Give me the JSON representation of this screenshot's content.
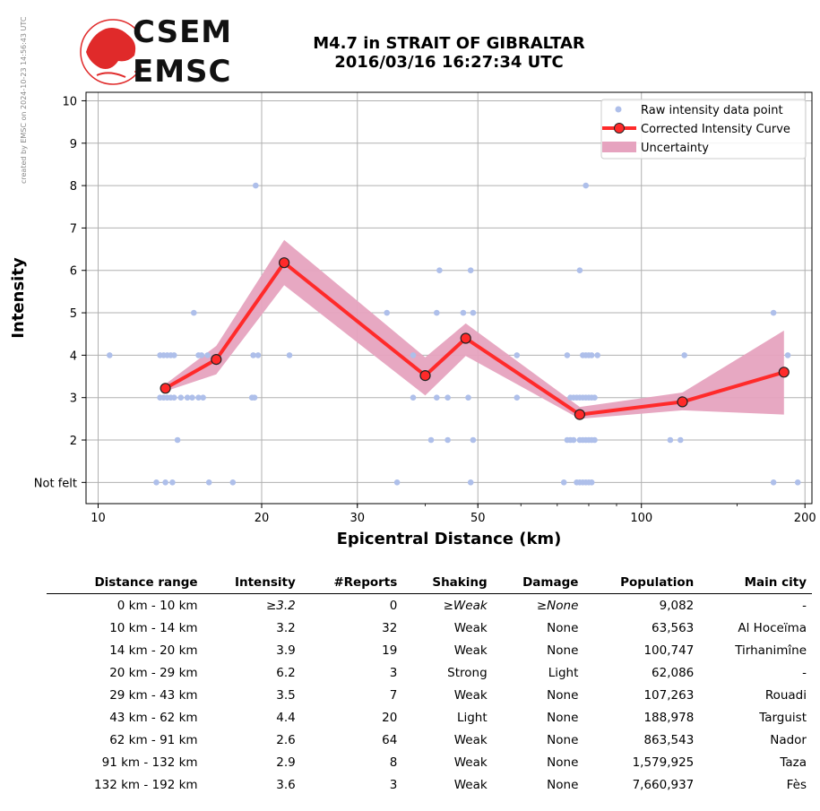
{
  "side_credit": "created by EMSC on 2024-10-23 14:56:43 UTC",
  "logo": {
    "line1": "CSEM",
    "line2": "EMSC"
  },
  "header": {
    "title_line1": "M4.7 in STRAIT OF GIBRALTAR",
    "title_line2": "2016/03/16 16:27:34 UTC"
  },
  "colors": {
    "raw": "#aebfea",
    "curve": "#ff2a2a",
    "band": "#e6a3bf",
    "grid": "#b0b0b0"
  },
  "chart_data": {
    "type": "scatter",
    "xlabel": "Epicentral Distance (km)",
    "ylabel": "Intensity",
    "xscale": "log",
    "xlim": [
      9.5,
      206
    ],
    "ylim": [
      0.5,
      10.2
    ],
    "x_ticks": [
      {
        "value": 10,
        "label": "10"
      },
      {
        "value": 20,
        "label": "20"
      },
      {
        "value": 30,
        "label": "30"
      },
      {
        "value": 50,
        "label": "50"
      },
      {
        "value": 100,
        "label": "100"
      },
      {
        "value": 200,
        "label": "200"
      }
    ],
    "y_ticks": [
      {
        "value": 1,
        "label": "Not felt"
      },
      {
        "value": 2,
        "label": "2"
      },
      {
        "value": 3,
        "label": "3"
      },
      {
        "value": 4,
        "label": "4"
      },
      {
        "value": 5,
        "label": "5"
      },
      {
        "value": 6,
        "label": "6"
      },
      {
        "value": 7,
        "label": "7"
      },
      {
        "value": 8,
        "label": "8"
      },
      {
        "value": 9,
        "label": "9"
      },
      {
        "value": 10,
        "label": "10"
      }
    ],
    "grid": true,
    "legend_position": "top-right",
    "legend": [
      "Raw intensity data point",
      "Corrected Intensity Curve",
      "Uncertainty"
    ],
    "raw_points": [
      [
        10.5,
        4
      ],
      [
        12.8,
        1
      ],
      [
        13.3,
        1
      ],
      [
        13.7,
        1
      ],
      [
        16,
        1
      ],
      [
        17.7,
        1
      ],
      [
        35.5,
        1
      ],
      [
        48.5,
        1
      ],
      [
        72,
        1
      ],
      [
        76,
        1
      ],
      [
        77,
        1
      ],
      [
        78,
        1
      ],
      [
        79,
        1
      ],
      [
        80,
        1
      ],
      [
        81,
        1
      ],
      [
        175,
        1
      ],
      [
        194,
        1
      ],
      [
        14,
        2
      ],
      [
        41,
        2
      ],
      [
        44,
        2
      ],
      [
        49,
        2
      ],
      [
        73,
        2
      ],
      [
        74,
        2
      ],
      [
        75,
        2
      ],
      [
        77,
        2
      ],
      [
        78,
        2
      ],
      [
        79,
        2
      ],
      [
        80,
        2
      ],
      [
        81,
        2
      ],
      [
        82,
        2
      ],
      [
        113,
        2
      ],
      [
        118,
        2
      ],
      [
        13,
        3
      ],
      [
        13.2,
        3
      ],
      [
        13.4,
        3
      ],
      [
        13.6,
        3
      ],
      [
        13.8,
        3
      ],
      [
        14.2,
        3
      ],
      [
        14.6,
        3
      ],
      [
        14.9,
        3
      ],
      [
        15.3,
        3
      ],
      [
        15.6,
        3
      ],
      [
        19.2,
        3
      ],
      [
        19.4,
        3
      ],
      [
        38,
        3
      ],
      [
        42,
        3
      ],
      [
        44,
        3
      ],
      [
        48,
        3
      ],
      [
        59,
        3
      ],
      [
        74,
        3
      ],
      [
        75,
        3
      ],
      [
        76,
        3
      ],
      [
        77,
        3
      ],
      [
        78,
        3
      ],
      [
        79,
        3
      ],
      [
        80,
        3
      ],
      [
        81,
        3
      ],
      [
        82,
        3
      ],
      [
        13,
        4
      ],
      [
        13.2,
        4
      ],
      [
        13.4,
        4
      ],
      [
        13.6,
        4
      ],
      [
        13.8,
        4
      ],
      [
        15.3,
        4
      ],
      [
        15.5,
        4
      ],
      [
        15.9,
        4
      ],
      [
        19.3,
        4
      ],
      [
        19.7,
        4
      ],
      [
        22.5,
        4
      ],
      [
        38,
        4
      ],
      [
        59,
        4
      ],
      [
        73,
        4
      ],
      [
        78,
        4
      ],
      [
        79,
        4
      ],
      [
        80,
        4
      ],
      [
        81,
        4
      ],
      [
        83,
        4
      ],
      [
        120,
        4
      ],
      [
        186,
        4
      ],
      [
        15,
        5
      ],
      [
        34,
        5
      ],
      [
        42,
        5
      ],
      [
        47,
        5
      ],
      [
        49,
        5
      ],
      [
        175,
        5
      ],
      [
        42.5,
        6
      ],
      [
        48.5,
        6
      ],
      [
        77,
        6
      ],
      [
        19.5,
        8
      ],
      [
        79,
        8
      ]
    ],
    "series": [
      {
        "name": "Corrected Intensity Curve",
        "x": [
          13.3,
          16.5,
          22,
          40,
          47.5,
          77,
          119,
          183
        ],
        "y": [
          3.22,
          3.9,
          6.18,
          3.52,
          4.4,
          2.6,
          2.9,
          3.6
        ]
      },
      {
        "name": "Uncertainty",
        "x": [
          13.3,
          16.5,
          22,
          40,
          47.5,
          77,
          119,
          183
        ],
        "lower": [
          3.15,
          3.55,
          5.65,
          3.05,
          3.98,
          2.5,
          2.7,
          2.6
        ],
        "upper": [
          3.32,
          4.22,
          6.72,
          3.95,
          4.75,
          2.78,
          3.12,
          4.58
        ]
      }
    ]
  },
  "table": {
    "headers": [
      "Distance range",
      "Intensity",
      "#Reports",
      "Shaking",
      "Damage",
      "Population",
      "Main city"
    ],
    "rows": [
      [
        "0 km -   10 km",
        "≥3.2",
        "0",
        "≥Weak",
        "≥None",
        "9,082",
        "-"
      ],
      [
        "10 km -   14 km",
        "3.2",
        "32",
        "Weak",
        "None",
        "63,563",
        "Al Hoceïma"
      ],
      [
        "14 km -   20 km",
        "3.9",
        "19",
        "Weak",
        "None",
        "100,747",
        "Tirhanimîne"
      ],
      [
        "20 km -   29 km",
        "6.2",
        "3",
        "Strong",
        "Light",
        "62,086",
        "-"
      ],
      [
        "29 km -   43 km",
        "3.5",
        "7",
        "Weak",
        "None",
        "107,263",
        "Rouadi"
      ],
      [
        "43 km -   62 km",
        "4.4",
        "20",
        "Light",
        "None",
        "188,978",
        "Targuist"
      ],
      [
        "62 km -   91 km",
        "2.6",
        "64",
        "Weak",
        "None",
        "863,543",
        "Nador"
      ],
      [
        "91 km -  132 km",
        "2.9",
        "8",
        "Weak",
        "None",
        "1,579,925",
        "Taza"
      ],
      [
        "132 km -  192 km",
        "3.6",
        "3",
        "Weak",
        "None",
        "7,660,937",
        "Fès"
      ]
    ]
  }
}
